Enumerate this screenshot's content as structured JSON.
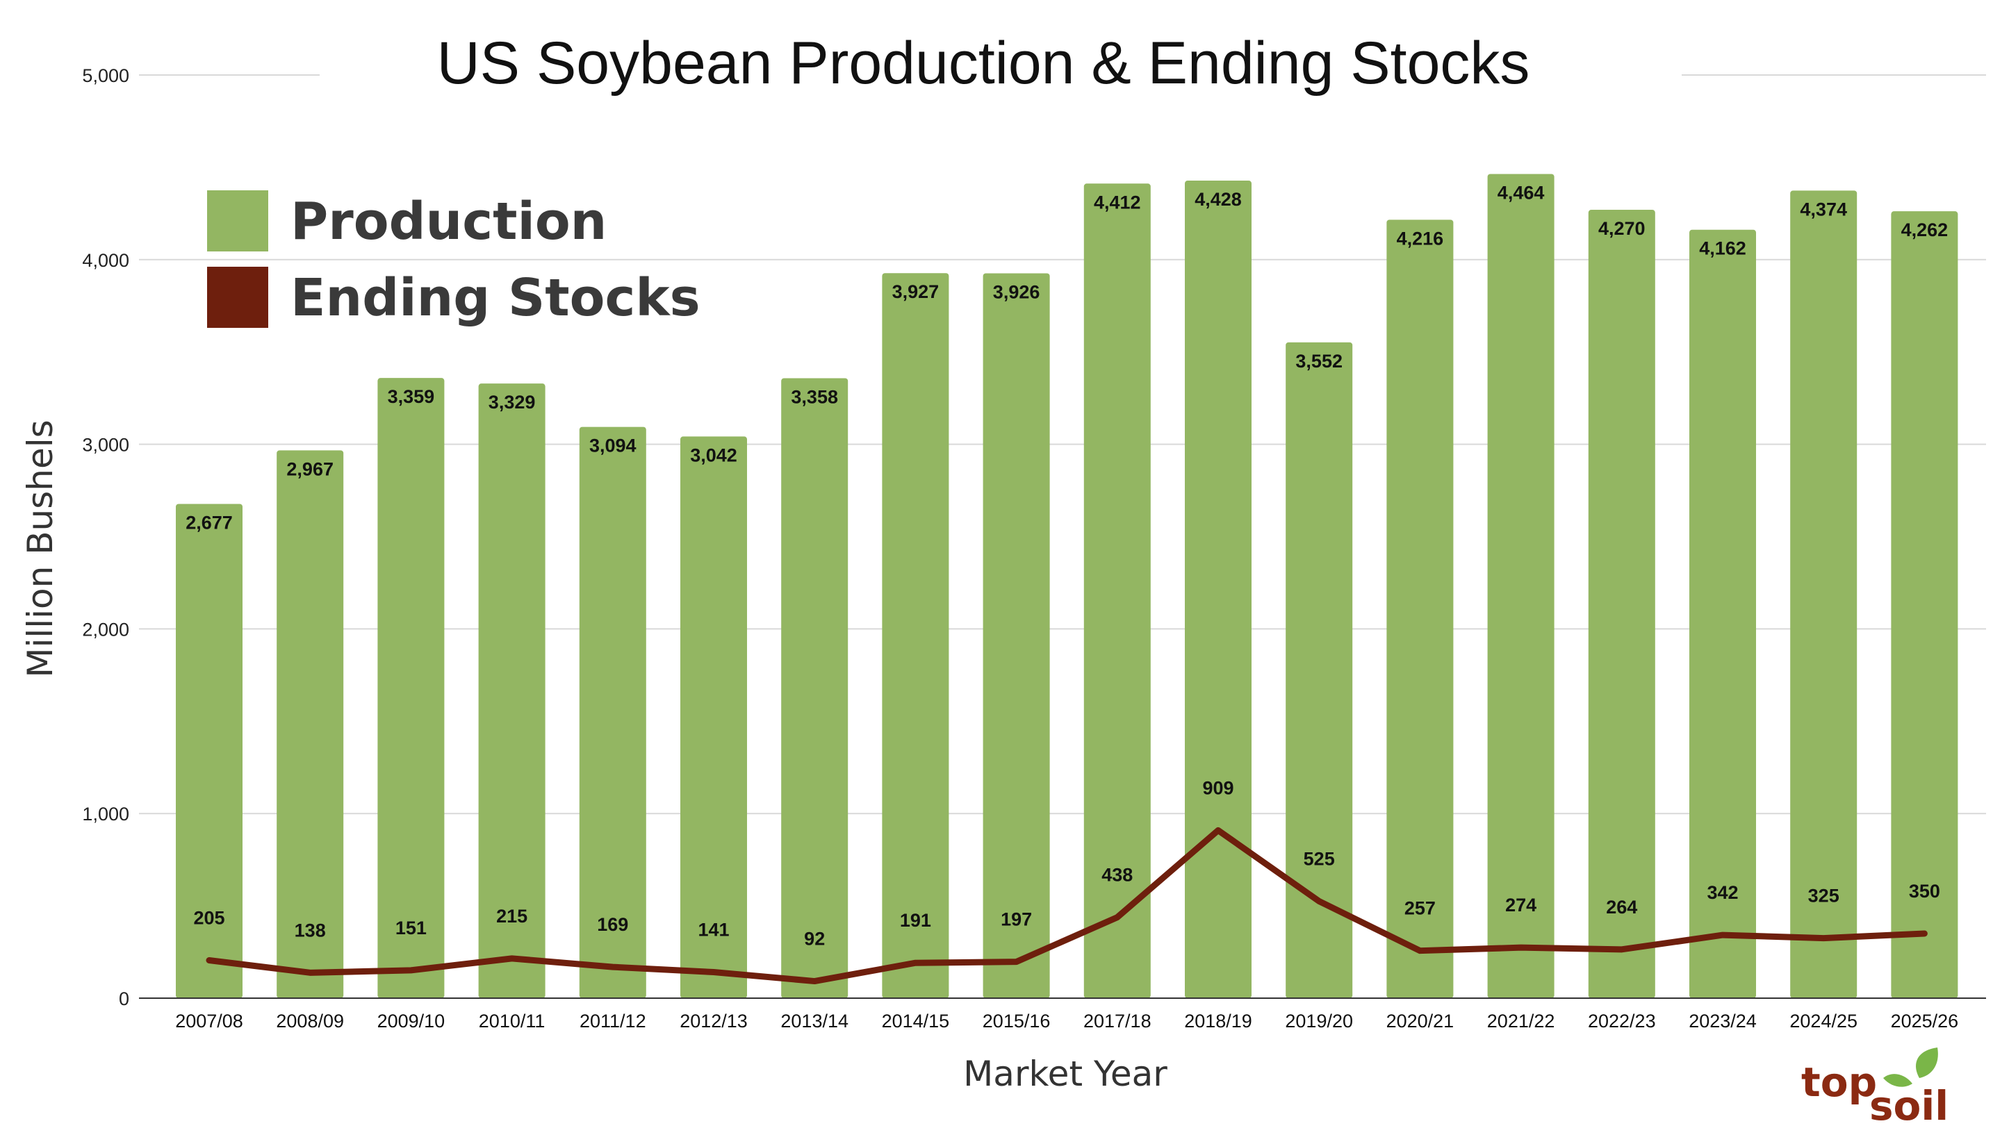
{
  "colors": {
    "production": "#93b662",
    "ending_stocks": "#6e1f0d",
    "grid": "#d9d9d9",
    "logo_top": "#8b2a12",
    "logo_leaf": "#7ab648"
  },
  "legend": {
    "production_label": "Production",
    "ending_stocks_label": "Ending Stocks"
  },
  "logo": {
    "word_top": "top",
    "word_soil": "soil"
  },
  "chart_data": {
    "type": "bar",
    "title": "US Soybean Production & Ending Stocks",
    "xlabel": "Market Year",
    "ylabel": "Million Bushels",
    "ylim": [
      0,
      5000
    ],
    "yticks": [
      0,
      1000,
      2000,
      3000,
      4000,
      5000
    ],
    "ytick_labels": [
      "0",
      "1,000",
      "2,000",
      "3,000",
      "4,000",
      "5,000"
    ],
    "grid": true,
    "legend_position": "top-left",
    "categories": [
      "2007/08",
      "2008/09",
      "2009/10",
      "2010/11",
      "2011/12",
      "2012/13",
      "2013/14",
      "2014/15",
      "2015/16",
      "2017/18",
      "2018/19",
      "2019/20",
      "2020/21",
      "2021/22",
      "2022/23",
      "2023/24",
      "2024/25",
      "2025/26"
    ],
    "series": [
      {
        "name": "Production",
        "kind": "bar",
        "values": [
          2677,
          2967,
          3359,
          3329,
          3094,
          3042,
          3358,
          3927,
          3926,
          4412,
          4428,
          3552,
          4216,
          4464,
          4270,
          4162,
          4374,
          4262
        ],
        "labels": [
          "2,677",
          "2,967",
          "3,359",
          "3,329",
          "3,094",
          "3,042",
          "3,358",
          "3,927",
          "3,926",
          "4,412",
          "4,428",
          "3,552",
          "4,216",
          "4,464",
          "4,270",
          "4,162",
          "4,374",
          "4,262"
        ]
      },
      {
        "name": "Ending Stocks",
        "kind": "line",
        "values": [
          205,
          138,
          151,
          215,
          169,
          141,
          92,
          191,
          197,
          438,
          909,
          525,
          257,
          274,
          264,
          342,
          325,
          350
        ],
        "labels": [
          "205",
          "138",
          "151",
          "215",
          "169",
          "141",
          "92",
          "191",
          "197",
          "438",
          "909",
          "525",
          "257",
          "274",
          "264",
          "342",
          "325",
          "350"
        ]
      }
    ]
  }
}
